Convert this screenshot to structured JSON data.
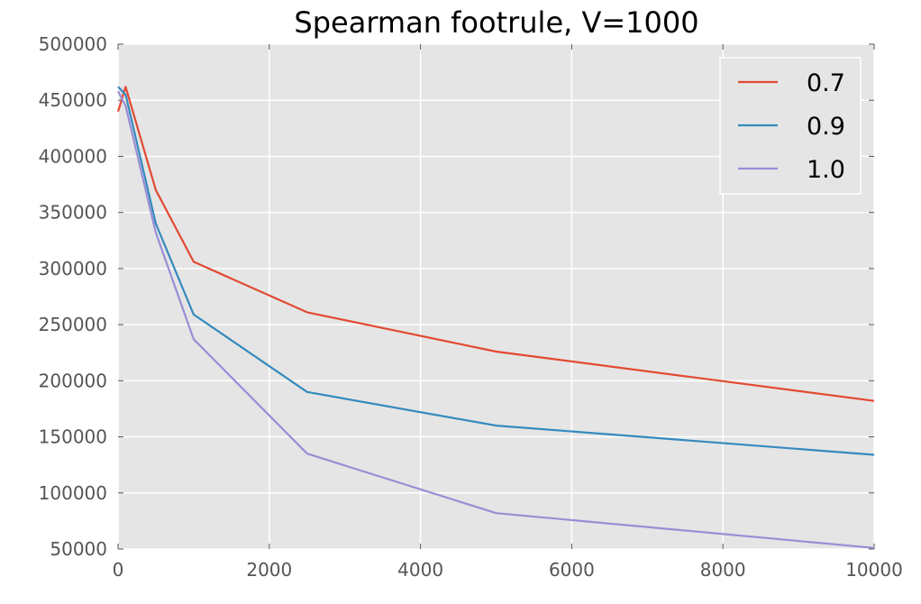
{
  "chart_data": {
    "type": "line",
    "title": "Spearman footrule, V=1000",
    "xlabel": "",
    "ylabel": "",
    "xlim": [
      0,
      10000
    ],
    "ylim": [
      50000,
      500000
    ],
    "x_ticks": [
      "0",
      "2000",
      "4000",
      "6000",
      "8000",
      "10000"
    ],
    "y_ticks": [
      "50000",
      "100000",
      "150000",
      "200000",
      "250000",
      "300000",
      "350000",
      "400000",
      "450000",
      "500000"
    ],
    "grid": true,
    "legend_position": "top-right",
    "series": [
      {
        "name": "0.7",
        "color": "#e24a33",
        "x": [
          0,
          100,
          500,
          1000,
          2500,
          5000,
          10000
        ],
        "y": [
          440000,
          462000,
          370000,
          306000,
          261000,
          226000,
          182000
        ]
      },
      {
        "name": "0.9",
        "color": "#348abd",
        "x": [
          0,
          100,
          500,
          1000,
          2500,
          5000,
          10000
        ],
        "y": [
          462000,
          455000,
          340000,
          259000,
          190000,
          160000,
          134000
        ]
      },
      {
        "name": "1.0",
        "color": "#988ed5",
        "x": [
          0,
          100,
          500,
          1000,
          2500,
          5000,
          10000
        ],
        "y": [
          458000,
          445000,
          332000,
          237000,
          135000,
          82000,
          51000
        ]
      }
    ]
  }
}
